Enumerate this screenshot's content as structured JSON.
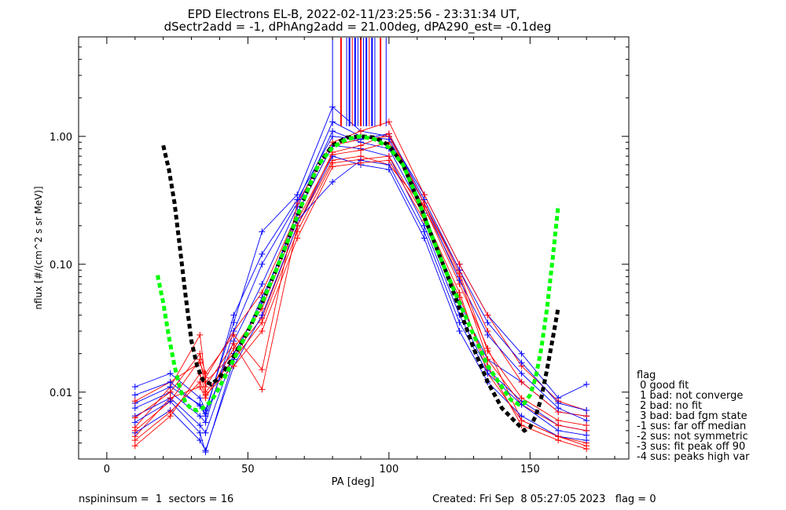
{
  "chart_data": {
    "type": "line",
    "title": "EPD Electrons EL-B, 2022-02-11/23:25:56 - 23:31:34 UT,",
    "subtitle": "dSectr2add = -1, dPhAng2add = 21.00deg, dPA290_est=  -0.1deg",
    "xlabel": "PA [deg]",
    "ylabel": "nflux [#/(cm^2 s sr MeV)]",
    "xlim": [
      -10,
      185
    ],
    "ylim": [
      0.003,
      6
    ],
    "yscale": "log",
    "xticks": [
      "0",
      "50",
      "100",
      "150"
    ],
    "xtick_values": [
      0,
      50,
      100,
      150
    ],
    "yticks": [
      "0.01",
      "0.10",
      "1.00"
    ],
    "ytick_values": [
      0.01,
      0.1,
      1.0
    ],
    "series_colors": {
      "red": "#ff0000",
      "blue": "#0000ff",
      "black": "#000000",
      "green": "#00ff00"
    },
    "pa_bins": [
      10,
      22.5,
      33,
      35,
      45,
      55,
      67.5,
      80,
      90,
      100,
      112.5,
      125,
      135,
      147,
      160,
      170
    ],
    "red_traces": [
      [
        0.0053,
        0.011,
        0.028,
        0.012,
        0.02,
        0.038,
        0.2,
        0.65,
        0.7,
        0.6,
        0.28,
        0.07,
        0.022,
        0.006,
        0.0045,
        0.004
      ],
      [
        0.0085,
        0.012,
        0.017,
        0.013,
        0.03,
        0.06,
        0.25,
        0.85,
        0.95,
        1.0,
        0.3,
        0.09,
        0.03,
        0.012,
        0.007,
        0.0065
      ],
      [
        0.0045,
        0.009,
        0.011,
        0.009,
        0.022,
        0.045,
        0.22,
        0.72,
        0.78,
        0.9,
        0.28,
        0.08,
        0.018,
        0.008,
        0.0055,
        0.005
      ],
      [
        0.0038,
        0.0065,
        0.014,
        0.01,
        0.018,
        0.035,
        0.18,
        0.62,
        0.66,
        0.7,
        0.24,
        0.06,
        0.014,
        0.006,
        0.0045,
        0.0038
      ],
      [
        0.0063,
        0.01,
        0.02,
        0.014,
        0.028,
        0.015,
        0.3,
        0.9,
        1.1,
        1.3,
        0.35,
        0.1,
        0.04,
        0.016,
        0.0085,
        0.0072
      ],
      [
        0.005,
        0.0085,
        0.018,
        0.011,
        0.024,
        0.0105,
        0.2,
        0.75,
        0.85,
        1.05,
        0.3,
        0.085,
        0.021,
        0.009,
        0.006,
        0.0055
      ],
      [
        0.0042,
        0.007,
        0.012,
        0.0095,
        0.016,
        0.03,
        0.16,
        0.58,
        0.62,
        0.65,
        0.22,
        0.055,
        0.016,
        0.0055,
        0.0042,
        0.0036
      ]
    ],
    "blue_traces": [
      [
        0.011,
        0.014,
        0.009,
        0.0072,
        0.035,
        0.18,
        0.35,
        1.7,
        1.1,
        1.0,
        0.35,
        0.1,
        0.04,
        0.02,
        0.009,
        0.0115
      ],
      [
        0.0082,
        0.011,
        0.008,
        0.0065,
        0.025,
        0.07,
        0.28,
        1.1,
        0.9,
        0.8,
        0.25,
        0.05,
        0.018,
        0.012,
        0.007,
        0.0065
      ],
      [
        0.0065,
        0.009,
        0.0055,
        0.0048,
        0.02,
        0.05,
        0.25,
        0.85,
        0.8,
        0.7,
        0.2,
        0.04,
        0.015,
        0.0085,
        0.0055,
        0.005
      ],
      [
        0.0048,
        0.0072,
        0.0042,
        0.0035,
        0.016,
        0.04,
        0.2,
        0.7,
        0.6,
        0.55,
        0.16,
        0.03,
        0.012,
        0.0065,
        0.0045,
        0.0042
      ],
      [
        0.0075,
        0.01,
        0.0065,
        0.0058,
        0.03,
        0.1,
        0.3,
        1.3,
        1.0,
        0.95,
        0.3,
        0.075,
        0.028,
        0.014,
        0.0075,
        0.006
      ],
      [
        0.0095,
        0.012,
        0.0078,
        0.0068,
        0.04,
        0.12,
        0.32,
        1.0,
        0.95,
        1.05,
        0.32,
        0.09,
        0.035,
        0.017,
        0.0082,
        0.0072
      ],
      [
        0.0058,
        0.0085,
        0.0048,
        0.0034,
        0.018,
        0.055,
        0.22,
        0.44,
        0.65,
        0.6,
        0.18,
        0.035,
        0.014,
        0.008,
        0.005,
        0.0046
      ]
    ],
    "black_fit": {
      "x": [
        20,
        22,
        24,
        26,
        28,
        30,
        32,
        34,
        37,
        40,
        45,
        50,
        55,
        60,
        65,
        70,
        75,
        80,
        85,
        90,
        95,
        100,
        105,
        110,
        115,
        120,
        125,
        130,
        135,
        140,
        145,
        148,
        150,
        152,
        154,
        156,
        158,
        160
      ],
      "y": [
        0.85,
        0.55,
        0.3,
        0.13,
        0.055,
        0.025,
        0.016,
        0.0125,
        0.0115,
        0.013,
        0.019,
        0.03,
        0.05,
        0.09,
        0.17,
        0.33,
        0.6,
        0.85,
        0.98,
        1.0,
        0.98,
        0.85,
        0.6,
        0.33,
        0.17,
        0.09,
        0.045,
        0.022,
        0.012,
        0.0075,
        0.0058,
        0.005,
        0.0053,
        0.0065,
        0.009,
        0.015,
        0.026,
        0.046
      ]
    },
    "green_fit": {
      "x": [
        18,
        20,
        22,
        24,
        26,
        28,
        30,
        32,
        34,
        37,
        40,
        45,
        50,
        55,
        60,
        65,
        70,
        75,
        80,
        85,
        90,
        95,
        100,
        105,
        110,
        115,
        120,
        125,
        130,
        135,
        140,
        143,
        146,
        148,
        150,
        152,
        154,
        156,
        158,
        160
      ],
      "y": [
        0.082,
        0.05,
        0.027,
        0.016,
        0.0105,
        0.0082,
        0.0074,
        0.0072,
        0.0075,
        0.0085,
        0.011,
        0.018,
        0.03,
        0.05,
        0.09,
        0.17,
        0.33,
        0.6,
        0.82,
        0.95,
        1.0,
        0.95,
        0.82,
        0.6,
        0.33,
        0.17,
        0.09,
        0.05,
        0.028,
        0.016,
        0.011,
        0.0088,
        0.008,
        0.0082,
        0.0095,
        0.013,
        0.022,
        0.045,
        0.11,
        0.29
      ]
    },
    "spike_bins": [
      80,
      83,
      85,
      86,
      87,
      88,
      89,
      90,
      91,
      92,
      93,
      94,
      95,
      97,
      99
    ]
  },
  "legend": {
    "title": "flag",
    "items": [
      " 0 good fit",
      " 1 bad: not converge",
      " 2 bad: no fit",
      " 3 bad: bad fgm state",
      "-1 sus: far off median",
      "-2 sus: not symmetric",
      "-3 sus: fit peak off 90",
      "-4 sus: peaks high var"
    ]
  },
  "footer": {
    "left": "nspininsum =  1  sectors = 16",
    "right": "Created: Fri Sep  8 05:27:05 2023   flag = 0"
  }
}
